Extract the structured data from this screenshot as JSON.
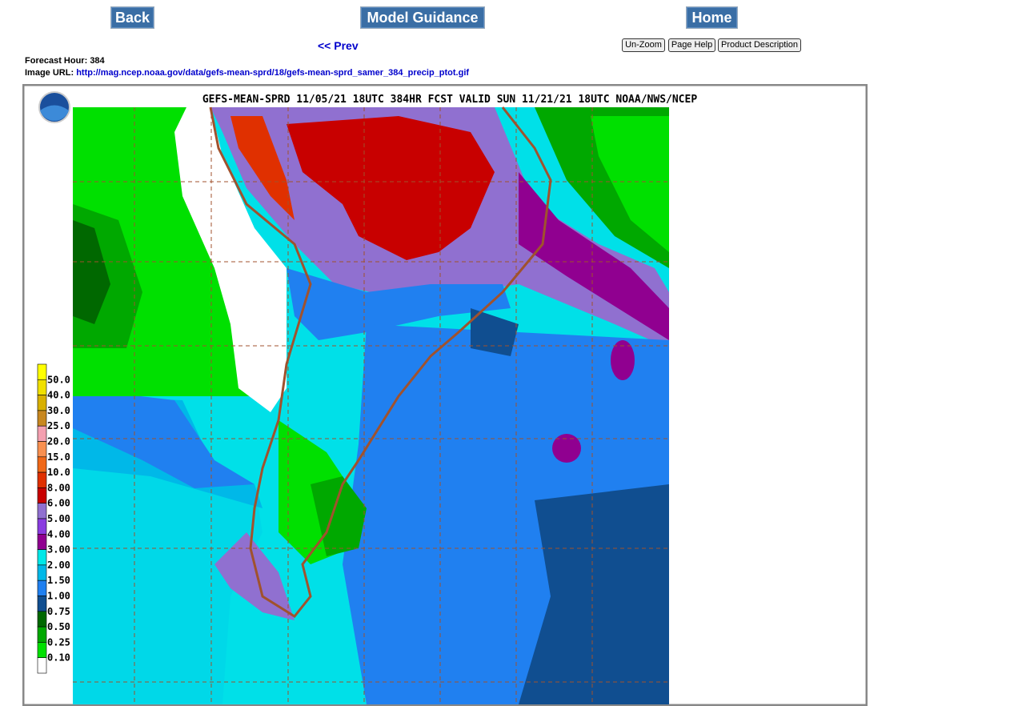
{
  "nav": {
    "back": "Back",
    "model_guidance": "Model Guidance",
    "home": "Home",
    "prev": "<< Prev",
    "buttons": [
      "Un-Zoom",
      "Page Help",
      "Product Description"
    ]
  },
  "info": {
    "forecast_hour_label": "Forecast Hour:",
    "forecast_hour": "384",
    "image_url_label": "Image URL:",
    "image_url": "http://mag.ncep.noaa.gov/data/gefs-mean-sprd/18/gefs-mean-sprd_samer_384_precip_ptot.gif"
  },
  "map": {
    "title": "GEFS-MEAN-SPRD 11/05/21 18UTC 384HR FCST VALID SUN 11/21/21 18UTC NOAA/NWS/NCEP",
    "legend": {
      "labels": [
        "50.0",
        "40.0",
        "30.0",
        "25.0",
        "20.0",
        "15.0",
        "10.0",
        "8.00",
        "6.00",
        "5.00",
        "4.00",
        "3.00",
        "2.00",
        "1.50",
        "1.00",
        "0.75",
        "0.50",
        "0.25",
        "0.10"
      ],
      "colors": [
        "#ffff00",
        "#f0e000",
        "#d8b000",
        "#c88820",
        "#f4a0b0",
        "#f89050",
        "#f06818",
        "#e03000",
        "#c80000",
        "#9070d0",
        "#8a3ce0",
        "#900090",
        "#00e8e8",
        "#00b8e8",
        "#2080f0",
        "#104e90",
        "#006800",
        "#00a800",
        "#00e000",
        "#ffffff"
      ]
    }
  }
}
